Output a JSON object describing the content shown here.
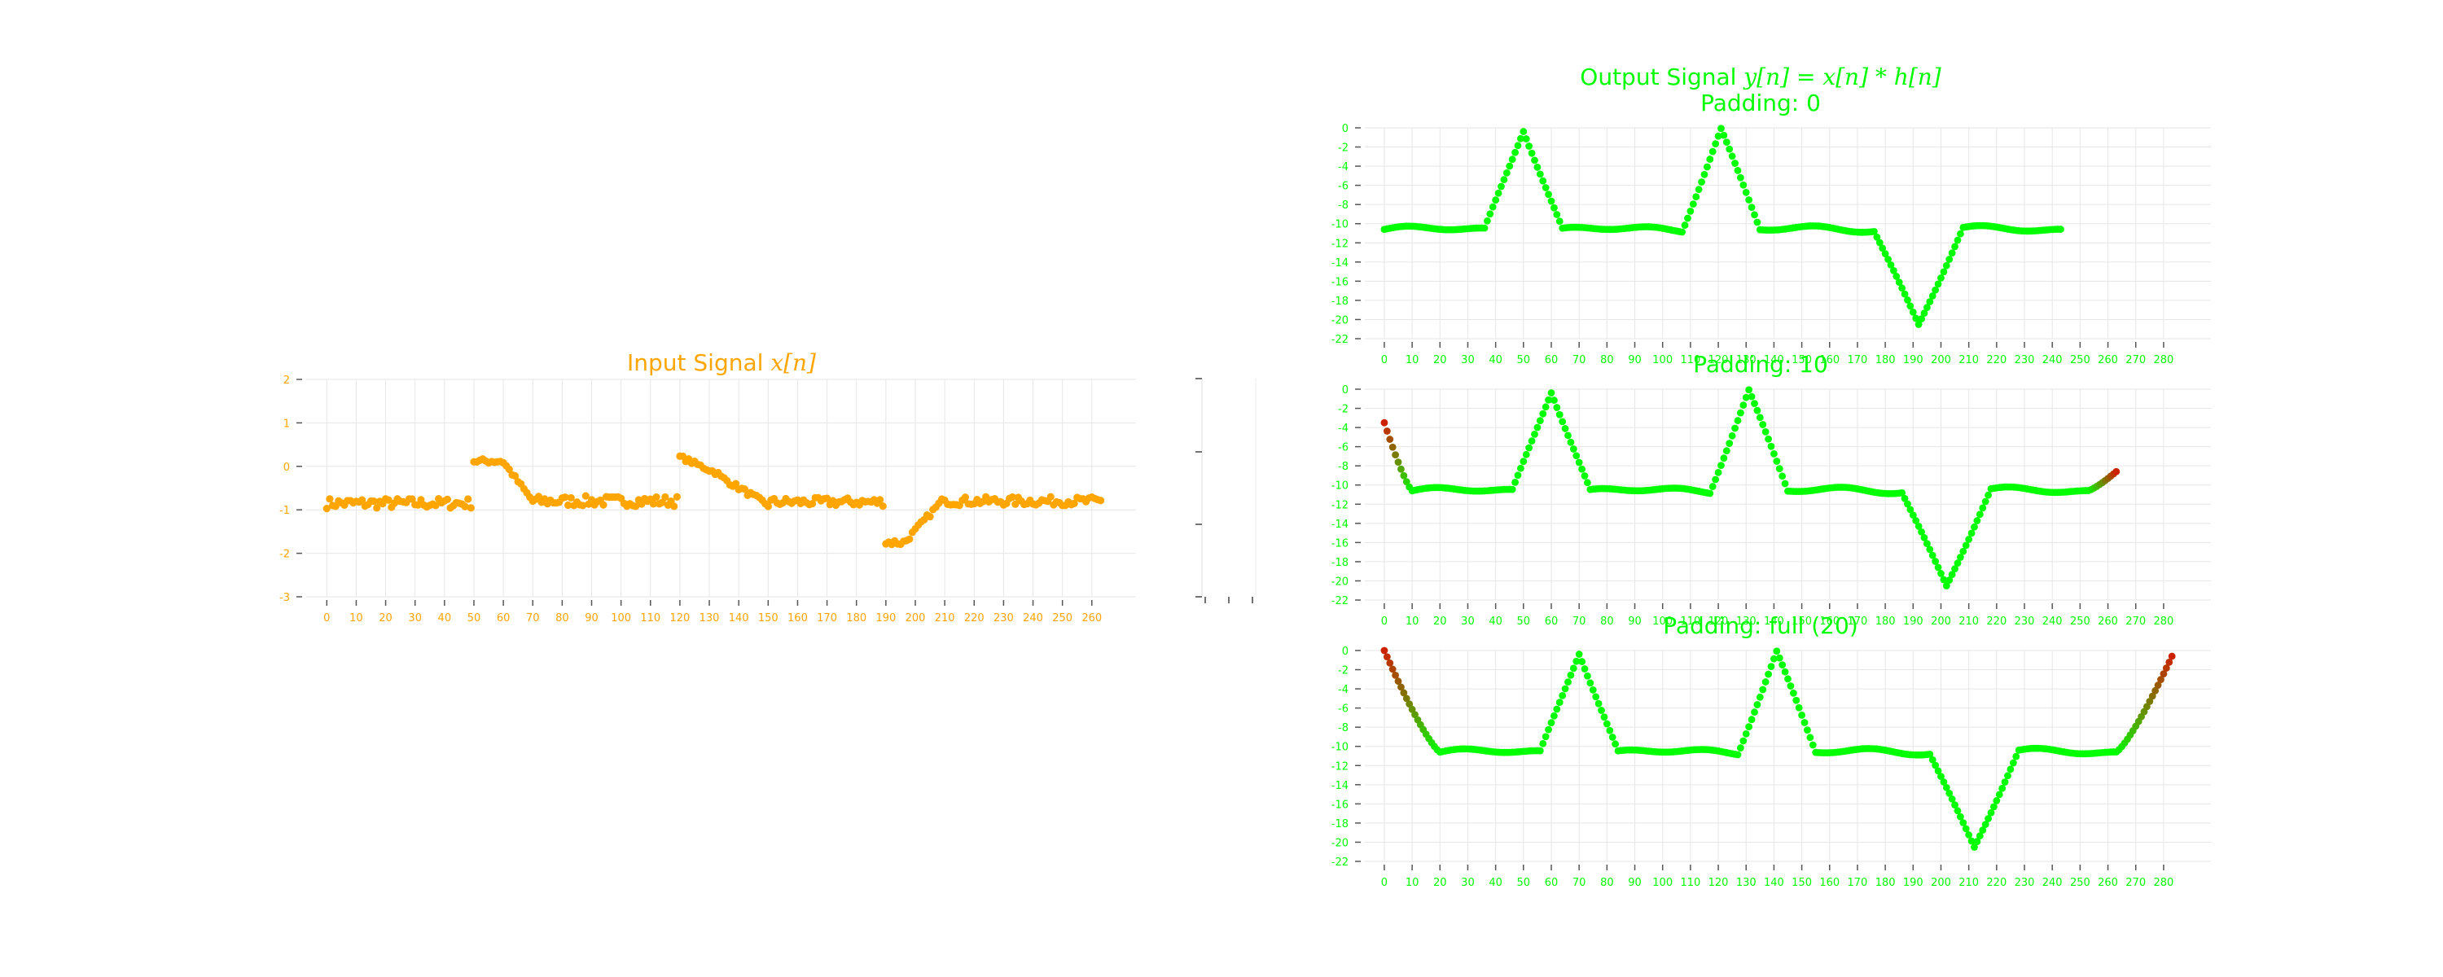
{
  "figure": {
    "input_title_text": "Input Signal ",
    "input_title_math": "x[n]",
    "output_title_text": "Output Signal ",
    "output_title_math": "y[n] = x[n] * h[n]",
    "colors": {
      "input": "#ffa500",
      "output": "#00ff00",
      "edge_start": "#cc2200",
      "grid": "#e6e6e6"
    }
  },
  "chart_data": [
    {
      "type": "scatter",
      "name": "input",
      "title": "Input Signal x[n]",
      "xlabel": "",
      "ylabel": "",
      "xlim": [
        -7,
        275
      ],
      "ylim": [
        -3,
        2
      ],
      "xticks": [
        0,
        10,
        20,
        30,
        40,
        50,
        60,
        70,
        80,
        90,
        100,
        110,
        120,
        130,
        140,
        150,
        160,
        170,
        180,
        190,
        200,
        210,
        220,
        230,
        240,
        250,
        260
      ],
      "yticks": [
        -3,
        -2,
        -1,
        0,
        1,
        2
      ],
      "grid": true,
      "segments": [
        {
          "x_start": 0,
          "x_end": 49,
          "base": -0.85,
          "slope": 0,
          "noise": 0.12
        },
        {
          "x_start": 50,
          "x_end": 59,
          "base": 0.12,
          "slope": 0,
          "noise": 0.06
        },
        {
          "x_start": 60,
          "x_end": 70,
          "base": 0.1,
          "slope": -0.09,
          "noise": 0.05
        },
        {
          "x_start": 71,
          "x_end": 119,
          "base": -0.8,
          "slope": 0,
          "noise": 0.12
        },
        {
          "x_start": 120,
          "x_end": 133,
          "base": 0.22,
          "slope": -0.03,
          "noise": 0.05
        },
        {
          "x_start": 134,
          "x_end": 150,
          "base": -0.25,
          "slope": -0.04,
          "noise": 0.06
        },
        {
          "x_start": 151,
          "x_end": 189,
          "base": -0.82,
          "slope": 0,
          "noise": 0.1
        },
        {
          "x_start": 190,
          "x_end": 196,
          "base": -1.75,
          "slope": 0,
          "noise": 0.08
        },
        {
          "x_start": 197,
          "x_end": 210,
          "base": -1.7,
          "slope": 0.075,
          "noise": 0.06
        },
        {
          "x_start": 211,
          "x_end": 263,
          "base": -0.8,
          "slope": 0,
          "noise": 0.1
        }
      ]
    },
    {
      "type": "scatter",
      "name": "output_padding_0",
      "title": "Padding: 0",
      "xlim": [
        -7,
        297
      ],
      "ylim": [
        -22,
        0
      ],
      "xticks": [
        0,
        10,
        20,
        30,
        40,
        50,
        60,
        70,
        80,
        90,
        100,
        110,
        120,
        130,
        140,
        150,
        160,
        170,
        180,
        190,
        200,
        210,
        220,
        230,
        240,
        250,
        260,
        270,
        280
      ],
      "yticks": [
        0,
        -2,
        -4,
        -6,
        -8,
        -10,
        -12,
        -14,
        -16,
        -18,
        -20,
        -22
      ],
      "grid": true,
      "n_points": 244,
      "x_offset": 0,
      "edge_points": 0,
      "edge_y0": 0
    },
    {
      "type": "scatter",
      "name": "output_padding_10",
      "title": "Padding: 10",
      "xlim": [
        -7,
        297
      ],
      "ylim": [
        -22,
        0
      ],
      "xticks": [
        0,
        10,
        20,
        30,
        40,
        50,
        60,
        70,
        80,
        90,
        100,
        110,
        120,
        130,
        140,
        150,
        160,
        170,
        180,
        190,
        200,
        210,
        220,
        230,
        240,
        250,
        260,
        270,
        280
      ],
      "yticks": [
        0,
        -2,
        -4,
        -6,
        -8,
        -10,
        -12,
        -14,
        -16,
        -18,
        -20,
        -22
      ],
      "grid": true,
      "n_points": 264,
      "x_offset": 10,
      "edge_points": 10,
      "edge_y0": -3.5
    },
    {
      "type": "scatter",
      "name": "output_padding_full",
      "title": "Padding: full (20)",
      "xlim": [
        -7,
        297
      ],
      "ylim": [
        -22,
        0
      ],
      "xticks": [
        0,
        10,
        20,
        30,
        40,
        50,
        60,
        70,
        80,
        90,
        100,
        110,
        120,
        130,
        140,
        150,
        160,
        170,
        180,
        190,
        200,
        210,
        220,
        230,
        240,
        250,
        260,
        270,
        280
      ],
      "yticks": [
        0,
        -2,
        -4,
        -6,
        -8,
        -10,
        -12,
        -14,
        -16,
        -18,
        -20,
        -22
      ],
      "grid": true,
      "n_points": 284,
      "x_offset": 20,
      "edge_points": 20,
      "edge_y0": 0
    }
  ]
}
